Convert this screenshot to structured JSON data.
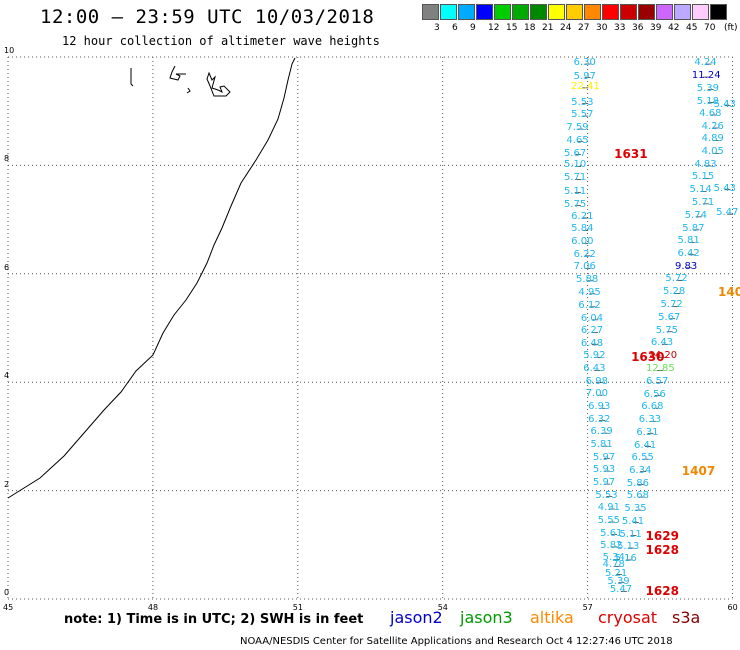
{
  "header": {
    "title": "12:00 – 23:59 UTC 10/03/2018",
    "subtitle": "12 hour collection of altimeter wave heights"
  },
  "colorbar": {
    "unit": "(ft)",
    "colors": [
      "#808080",
      "#00ffff",
      "#00aaff",
      "#0000ff",
      "#00cc00",
      "#00aa00",
      "#008800",
      "#ffff00",
      "#ffcc00",
      "#ff8800",
      "#ff0000",
      "#cc0000",
      "#990000",
      "#cc66ff",
      "#bbaaff",
      "#ffccff",
      "#000000"
    ],
    "labels": [
      "3",
      "6",
      "9",
      "12",
      "15",
      "18",
      "21",
      "24",
      "27",
      "30",
      "33",
      "36",
      "39",
      "42",
      "45",
      "70"
    ]
  },
  "axes": {
    "lat_labels": [
      "10",
      "8",
      "6",
      "4",
      "2",
      "0"
    ],
    "lon_labels": [
      "45",
      "48",
      "51",
      "54",
      "57",
      "60"
    ]
  },
  "observations": [
    {
      "v": "6.30",
      "lon": 57.0,
      "lat": 9.87,
      "c": "#1fb8ee"
    },
    {
      "v": "5.97",
      "lon": 57.0,
      "lat": 9.62,
      "c": "#1fb8ee"
    },
    {
      "v": "22.41",
      "lon": 56.95,
      "lat": 9.43,
      "c": "#ffee00"
    },
    {
      "v": "5.53",
      "lon": 56.95,
      "lat": 9.14,
      "c": "#1fb8ee"
    },
    {
      "v": "5.57",
      "lon": 56.95,
      "lat": 8.91,
      "c": "#1fb8ee"
    },
    {
      "v": "7.59",
      "lon": 56.85,
      "lat": 8.67,
      "c": "#1fb8ee"
    },
    {
      "v": "4.65",
      "lon": 56.85,
      "lat": 8.44,
      "c": "#1fb8ee"
    },
    {
      "v": "5.67",
      "lon": 56.8,
      "lat": 8.2,
      "c": "#1fb8ee"
    },
    {
      "v": "5.10",
      "lon": 56.8,
      "lat": 7.98,
      "c": "#1fb8ee"
    },
    {
      "v": "5.71",
      "lon": 56.8,
      "lat": 7.74,
      "c": "#1fb8ee"
    },
    {
      "v": "5.11",
      "lon": 56.8,
      "lat": 7.5,
      "c": "#1fb8ee"
    },
    {
      "v": "5.75",
      "lon": 56.8,
      "lat": 7.26,
      "c": "#1fb8ee"
    },
    {
      "v": "6.21",
      "lon": 56.95,
      "lat": 7.03,
      "c": "#1fb8ee"
    },
    {
      "v": "5.84",
      "lon": 56.95,
      "lat": 6.8,
      "c": "#1fb8ee"
    },
    {
      "v": "6.00",
      "lon": 56.95,
      "lat": 6.56,
      "c": "#1fb8ee"
    },
    {
      "v": "6.22",
      "lon": 57.0,
      "lat": 6.33,
      "c": "#1fb8ee"
    },
    {
      "v": "7.06",
      "lon": 57.0,
      "lat": 6.1,
      "c": "#1fb8ee"
    },
    {
      "v": "5.88",
      "lon": 57.05,
      "lat": 5.87,
      "c": "#1fb8ee"
    },
    {
      "v": "4.95",
      "lon": 57.1,
      "lat": 5.63,
      "c": "#1fb8ee"
    },
    {
      "v": "6.12",
      "lon": 57.1,
      "lat": 5.39,
      "c": "#1fb8ee"
    },
    {
      "v": "6.04",
      "lon": 57.15,
      "lat": 5.15,
      "c": "#1fb8ee"
    },
    {
      "v": "6.27",
      "lon": 57.15,
      "lat": 4.92,
      "c": "#1fb8ee"
    },
    {
      "v": "6.48",
      "lon": 57.15,
      "lat": 4.69,
      "c": "#1fb8ee"
    },
    {
      "v": "5.92",
      "lon": 57.2,
      "lat": 4.46,
      "c": "#1fb8ee"
    },
    {
      "v": "6.43",
      "lon": 57.2,
      "lat": 4.22,
      "c": "#1fb8ee"
    },
    {
      "v": "6.98",
      "lon": 57.25,
      "lat": 3.99,
      "c": "#1fb8ee"
    },
    {
      "v": "7.00",
      "lon": 57.25,
      "lat": 3.76,
      "c": "#1fb8ee"
    },
    {
      "v": "6.93",
      "lon": 57.3,
      "lat": 3.52,
      "c": "#1fb8ee"
    },
    {
      "v": "6.32",
      "lon": 57.3,
      "lat": 3.29,
      "c": "#1fb8ee"
    },
    {
      "v": "6.39",
      "lon": 57.35,
      "lat": 3.06,
      "c": "#1fb8ee"
    },
    {
      "v": "5.81",
      "lon": 57.35,
      "lat": 2.82,
      "c": "#1fb8ee"
    },
    {
      "v": "5.97",
      "lon": 57.4,
      "lat": 2.59,
      "c": "#1fb8ee"
    },
    {
      "v": "5.93",
      "lon": 57.4,
      "lat": 2.36,
      "c": "#1fb8ee"
    },
    {
      "v": "5.97",
      "lon": 57.4,
      "lat": 2.12,
      "c": "#1fb8ee"
    },
    {
      "v": "5.53",
      "lon": 57.45,
      "lat": 1.89,
      "c": "#1fb8ee"
    },
    {
      "v": "4.91",
      "lon": 57.5,
      "lat": 1.66,
      "c": "#1fb8ee"
    },
    {
      "v": "5.55",
      "lon": 57.5,
      "lat": 1.42,
      "c": "#1fb8ee"
    },
    {
      "v": "5.61",
      "lon": 57.55,
      "lat": 1.19,
      "c": "#1fb8ee"
    },
    {
      "v": "5.82",
      "lon": 57.55,
      "lat": 0.96,
      "c": "#1fb8ee"
    },
    {
      "v": "5.34",
      "lon": 57.6,
      "lat": 0.73,
      "c": "#1fb8ee"
    },
    {
      "v": "4.78",
      "lon": 57.6,
      "lat": 0.6,
      "c": "#1fb8ee"
    },
    {
      "v": "5.21",
      "lon": 57.65,
      "lat": 0.45,
      "c": "#1fb8ee"
    },
    {
      "v": "5.39",
      "lon": 57.7,
      "lat": 0.3,
      "c": "#1fb8ee"
    },
    {
      "v": "5.47",
      "lon": 57.75,
      "lat": 0.14,
      "c": "#1fb8ee"
    },
    {
      "v": "4.24",
      "lon": 59.5,
      "lat": 9.87,
      "c": "#1fb8ee"
    },
    {
      "v": "11.24",
      "lon": 59.45,
      "lat": 9.63,
      "c": "#0000cc"
    },
    {
      "v": "5.39",
      "lon": 59.55,
      "lat": 9.4,
      "c": "#1fb8ee"
    },
    {
      "v": "5.18",
      "lon": 59.55,
      "lat": 9.16,
      "c": "#1fb8ee"
    },
    {
      "v": "4.68",
      "lon": 59.6,
      "lat": 8.93,
      "c": "#1fb8ee"
    },
    {
      "v": "4.26",
      "lon": 59.65,
      "lat": 8.69,
      "c": "#1fb8ee"
    },
    {
      "v": "4.89",
      "lon": 59.65,
      "lat": 8.46,
      "c": "#1fb8ee"
    },
    {
      "v": "4.05",
      "lon": 59.65,
      "lat": 8.22,
      "c": "#1fb8ee"
    },
    {
      "v": "4.83",
      "lon": 59.5,
      "lat": 7.99,
      "c": "#1fb8ee"
    },
    {
      "v": "5.15",
      "lon": 59.45,
      "lat": 7.76,
      "c": "#1fb8ee"
    },
    {
      "v": "5.14",
      "lon": 59.4,
      "lat": 7.52,
      "c": "#1fb8ee"
    },
    {
      "v": "5.71",
      "lon": 59.45,
      "lat": 7.29,
      "c": "#1fb8ee"
    },
    {
      "v": "5.74",
      "lon": 59.3,
      "lat": 7.05,
      "c": "#1fb8ee"
    },
    {
      "v": "5.87",
      "lon": 59.25,
      "lat": 6.81,
      "c": "#1fb8ee"
    },
    {
      "v": "5.81",
      "lon": 59.15,
      "lat": 6.58,
      "c": "#1fb8ee"
    },
    {
      "v": "6.42",
      "lon": 59.15,
      "lat": 6.35,
      "c": "#1fb8ee"
    },
    {
      "v": "9.83",
      "lon": 59.1,
      "lat": 6.11,
      "c": "#0000cc"
    },
    {
      "v": "5.72",
      "lon": 58.9,
      "lat": 5.88,
      "c": "#1fb8ee"
    },
    {
      "v": "5.28",
      "lon": 58.85,
      "lat": 5.64,
      "c": "#1fb8ee"
    },
    {
      "v": "5.72",
      "lon": 58.8,
      "lat": 5.4,
      "c": "#1fb8ee"
    },
    {
      "v": "5.67",
      "lon": 58.75,
      "lat": 5.17,
      "c": "#1fb8ee"
    },
    {
      "v": "5.75",
      "lon": 58.7,
      "lat": 4.93,
      "c": "#1fb8ee"
    },
    {
      "v": "6.43",
      "lon": 58.6,
      "lat": 4.7,
      "c": "#1fb8ee"
    },
    {
      "v": "34.20",
      "lon": 58.55,
      "lat": 4.46,
      "c": "#cc0000"
    },
    {
      "v": "12.85",
      "lon": 58.5,
      "lat": 4.22,
      "c": "#66dd55"
    },
    {
      "v": "6.57",
      "lon": 58.5,
      "lat": 3.99,
      "c": "#1fb8ee"
    },
    {
      "v": "6.56",
      "lon": 58.45,
      "lat": 3.75,
      "c": "#1fb8ee"
    },
    {
      "v": "6.68",
      "lon": 58.4,
      "lat": 3.52,
      "c": "#1fb8ee"
    },
    {
      "v": "6.33",
      "lon": 58.35,
      "lat": 3.28,
      "c": "#1fb8ee"
    },
    {
      "v": "6.31",
      "lon": 58.3,
      "lat": 3.05,
      "c": "#1fb8ee"
    },
    {
      "v": "6.41",
      "lon": 58.25,
      "lat": 2.81,
      "c": "#1fb8ee"
    },
    {
      "v": "6.55",
      "lon": 58.2,
      "lat": 2.58,
      "c": "#1fb8ee"
    },
    {
      "v": "6.34",
      "lon": 58.15,
      "lat": 2.35,
      "c": "#1fb8ee"
    },
    {
      "v": "5.86",
      "lon": 58.1,
      "lat": 2.11,
      "c": "#1fb8ee"
    },
    {
      "v": "5.68",
      "lon": 58.1,
      "lat": 1.88,
      "c": "#1fb8ee"
    },
    {
      "v": "5.35",
      "lon": 58.05,
      "lat": 1.64,
      "c": "#1fb8ee"
    },
    {
      "v": "5.41",
      "lon": 58.0,
      "lat": 1.41,
      "c": "#1fb8ee"
    },
    {
      "v": "5.11",
      "lon": 57.95,
      "lat": 1.17,
      "c": "#1fb8ee"
    },
    {
      "v": "5.13",
      "lon": 57.9,
      "lat": 0.94,
      "c": "#1fb8ee"
    },
    {
      "v": "5.16",
      "lon": 57.85,
      "lat": 0.72,
      "c": "#1fb8ee"
    },
    {
      "v": "5.43",
      "lon": 59.9,
      "lat": 9.1,
      "c": "#1fb8ee"
    },
    {
      "v": "5.43",
      "lon": 59.9,
      "lat": 7.55,
      "c": "#1fb8ee"
    },
    {
      "v": "5.47",
      "lon": 59.95,
      "lat": 7.1,
      "c": "#1fb8ee"
    }
  ],
  "time_labels": [
    {
      "v": "1631",
      "lon": 57.55,
      "lat": 8.2,
      "c": "#dd0000"
    },
    {
      "v": "1630",
      "lon": 57.9,
      "lat": 4.45,
      "c": "#dd0000"
    },
    {
      "v": "1629",
      "lon": 58.2,
      "lat": 1.15,
      "c": "#dd0000"
    },
    {
      "v": "1628",
      "lon": 58.2,
      "lat": 0.88,
      "c": "#dd0000"
    },
    {
      "v": "1628",
      "lon": 58.2,
      "lat": 0.12,
      "c": "#dd0000"
    },
    {
      "v": "1407",
      "lon": 58.95,
      "lat": 2.35,
      "c": "#ee8800"
    },
    {
      "v": "140",
      "lon": 59.85,
      "lat": 5.65,
      "c": "#ee8800"
    }
  ],
  "footer": {
    "note": "note:  1) Time is in UTC;  2) SWH is in feet",
    "satellites": [
      {
        "name": "jason2",
        "color": "#0000cc"
      },
      {
        "name": "jason3",
        "color": "#009900"
      },
      {
        "name": "altika",
        "color": "#ff8800"
      },
      {
        "name": "cryosat",
        "color": "#dd0000"
      },
      {
        "name": "s3a",
        "color": "#880000"
      }
    ],
    "credit": "NOAA/NESDIS Center for Satellite Applications and Research    Oct  4 12:27:46 UTC 2018"
  }
}
